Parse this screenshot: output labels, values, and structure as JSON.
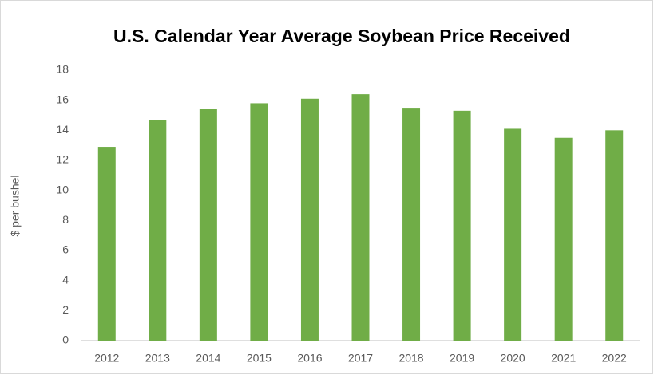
{
  "chart_data": {
    "type": "bar",
    "title": "U.S. Calendar Year Average Soybean Price Received",
    "y_label": "$ per bushel",
    "categories": [
      "2012",
      "2013",
      "2014",
      "2015",
      "2016",
      "2017",
      "2018",
      "2019",
      "2020",
      "2021",
      "2022"
    ],
    "values": [
      12.9,
      14.7,
      15.4,
      15.8,
      16.1,
      16.4,
      15.5,
      15.3,
      14.1,
      13.5,
      14.0
    ],
    "color": "#70ad47",
    "ylim": [
      0,
      18
    ],
    "yticks": [
      0,
      2,
      4,
      6,
      8,
      10,
      12,
      14,
      16,
      18
    ],
    "grid": false
  }
}
